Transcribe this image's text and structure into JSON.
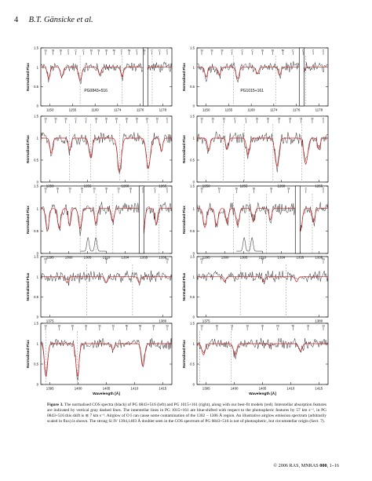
{
  "header": {
    "page_number": "4",
    "authors": "B.T. Gänsicke et al."
  },
  "figure": {
    "ylabel": "Normalised Flux",
    "xlabel": "Wavelength [Å]",
    "rows": [
      {
        "row": 1,
        "ylim": [
          0,
          1.5
        ],
        "yticks": [
          "0",
          "0.5",
          "1",
          "1.5"
        ],
        "left": {
          "object_label": "PG0843+516",
          "x_ticks": [
            "1150",
            "1155",
            "1160",
            "1174",
            "1176",
            "1178"
          ],
          "top_labels": [
            "Si",
            "Si",
            "Si",
            "C",
            "C",
            "C",
            "Si",
            "Si",
            "Si",
            "Ni",
            "C",
            "Ni",
            "C",
            "Si",
            "C",
            "C",
            "C"
          ],
          "broken_axis": true
        },
        "right": {
          "object_label": "PG1015+161",
          "x_ticks": [
            "1150",
            "1155",
            "1160",
            "1174",
            "1176",
            "1178"
          ],
          "top_labels": [
            "Si",
            "Si",
            "Si",
            "C",
            "C",
            "C",
            "Si",
            "Si",
            "Ni",
            "C",
            "C",
            "C",
            "C"
          ],
          "broken_axis": true
        }
      },
      {
        "row": 2,
        "ylim": [
          0,
          1.5
        ],
        "yticks": [
          "0",
          "0.5",
          "1",
          "1.5"
        ],
        "left": {
          "x_ticks": [
            "1250",
            "1255",
            "1260",
            "1265"
          ],
          "top_labels": [
            "Si",
            "Si",
            "Si",
            "C",
            "C",
            "Si",
            "Si",
            "Si",
            "Si",
            "Si",
            "Si",
            "Si",
            "C"
          ]
        },
        "right": {
          "x_ticks": [
            "1250",
            "1255",
            "1260",
            "1265"
          ],
          "top_labels": [
            "Si",
            "Si",
            "Si",
            "C",
            "C",
            "Si",
            "Si",
            "Si",
            "Si",
            "Si",
            "Si",
            "C"
          ]
        }
      },
      {
        "row": 3,
        "ylim": [
          0,
          1.5
        ],
        "yticks": [
          "0",
          "0.5",
          "1",
          "1.5"
        ],
        "left": {
          "x_ticks": [
            "1295",
            "1300",
            "1305",
            "1310",
            "1334",
            "1335",
            "1336"
          ],
          "top_labels": [
            "Si",
            "Si",
            "Si",
            "Si",
            "Si",
            "Si",
            "Si",
            "Si",
            "C",
            "C",
            "C"
          ],
          "broken_axis": true
        },
        "right": {
          "x_ticks": [
            "1295",
            "1300",
            "1305",
            "1310",
            "1334",
            "1335",
            "1336"
          ],
          "top_labels": [
            "Si",
            "Si",
            "Si",
            "Si",
            "Si",
            "Si",
            "C",
            "C"
          ],
          "broken_axis": true
        }
      },
      {
        "row": 4,
        "ylim": [
          0,
          1.5
        ],
        "yticks": [
          "0",
          "0.5",
          "1",
          "1.5"
        ],
        "left": {
          "x_ticks": [
            "1375",
            "1380"
          ],
          "top_labels": [
            "Ni",
            "Ni",
            "Ni"
          ]
        },
        "right": {
          "x_ticks": [
            "1375",
            "1380"
          ],
          "top_labels": [
            "Ni",
            "Ni",
            "Ni"
          ]
        }
      },
      {
        "row": 5,
        "ylim": [
          0,
          1.5
        ],
        "yticks": [
          "0",
          "0.5",
          "1",
          "1.5"
        ],
        "left": {
          "x_ticks": [
            "1395",
            "1400",
            "1405",
            "1410",
            "1415"
          ],
          "top_labels": [
            "Si",
            "Si",
            "Si",
            "Si",
            "Si",
            "Si",
            "Ni",
            "Ni",
            "Si",
            "Si"
          ]
        },
        "right": {
          "x_ticks": [
            "1395",
            "1400",
            "1405",
            "1410",
            "1415"
          ],
          "top_labels": [
            "Si",
            "Si",
            "Si",
            "Si",
            "Si",
            "Ni",
            "Ni",
            "Si",
            "Si"
          ]
        }
      }
    ]
  },
  "caption": {
    "label": "Figure 3.",
    "text": "The normalised COS spectra (black) of PG 0843+516 (left) and PG 1015+161 (right), along with our best-fit models (red). Interstellar absorption features are indicated by vertical gray dashed lines. The interstellar lines in PG 1015+161 are blue-shifted with respect to the photospheric features by 57 km s⁻¹, in PG 0843+516 this shift is ≲ 7 km s⁻¹. Airglow of O I can cause some contamination of the 1302 − 1306 Å region. An illustrative airglow emission spectrum (arbitrarily scaled in flux) is shown. The strong Si IV 1394,1403 Å doublet seen in the COS spectrum of PG 0843+516 is not of photospheric, but circumstellar origin (Sect. 7)."
  },
  "footer": {
    "text": "© 2006 RAS, MNRAS",
    "volume": "000",
    "pages": ", 1–16"
  },
  "colors": {
    "data": "#1a1a1a",
    "model": "#d42020",
    "ism": "#8c8c8c",
    "axis": "#000000"
  }
}
